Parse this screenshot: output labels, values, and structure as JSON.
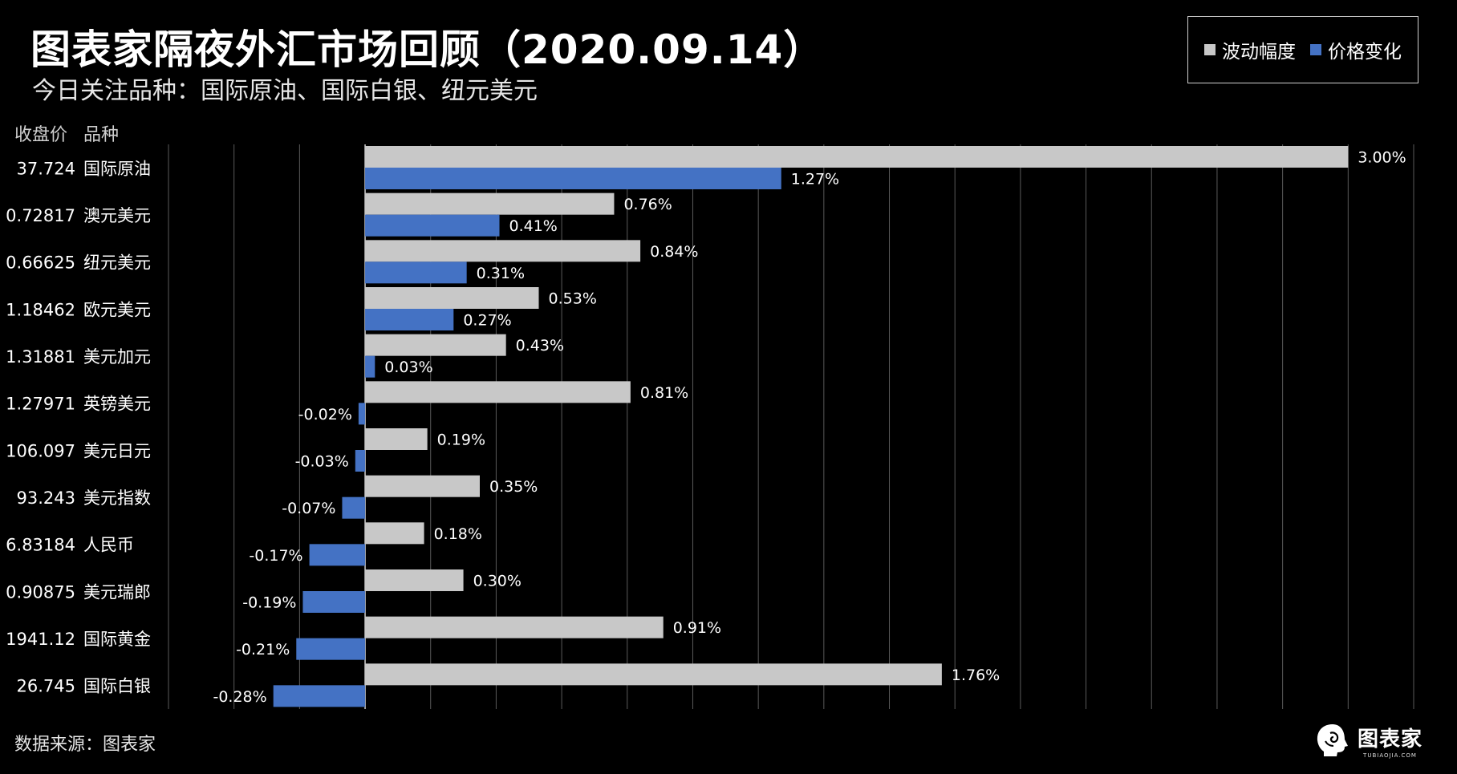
{
  "header": {
    "title": "图表家隔夜外汇市场回顾（2020.09.14）",
    "subtitle": "今日关注品种：国际原油、国际白银、纽元美元"
  },
  "legend": [
    {
      "label": "波动幅度",
      "color": "#c8c8c8"
    },
    {
      "label": "价格变化",
      "color": "#4472c4"
    }
  ],
  "columns": {
    "price": "收盘价",
    "name": "品种"
  },
  "source": "数据来源：图表家",
  "logo": {
    "cn": "图表家",
    "en": "TUBIAOJIA.COM"
  },
  "chart_data": {
    "type": "bar",
    "orientation": "horizontal",
    "categories": [
      "国际原油",
      "澳元美元",
      "纽元美元",
      "欧元美元",
      "美元加元",
      "英镑美元",
      "美元日元",
      "美元指数",
      "人民币",
      "美元瑞郎",
      "国际黄金",
      "国际白银"
    ],
    "closing_prices": [
      "37.724",
      "0.72817",
      "0.66625",
      "1.18462",
      "1.31881",
      "1.27971",
      "106.097",
      "93.243",
      "6.83184",
      "0.90875",
      "1941.12",
      "26.745"
    ],
    "series": [
      {
        "name": "波动幅度",
        "color": "#c8c8c8",
        "values": [
          3.0,
          0.76,
          0.84,
          0.53,
          0.43,
          0.81,
          0.19,
          0.35,
          0.18,
          0.3,
          0.91,
          1.76
        ],
        "labels": [
          "3.00%",
          "0.76%",
          "0.84%",
          "0.53%",
          "0.43%",
          "0.81%",
          "0.19%",
          "0.35%",
          "0.18%",
          "0.30%",
          "0.91%",
          "1.76%"
        ]
      },
      {
        "name": "价格变化",
        "color": "#4472c4",
        "values": [
          1.27,
          0.41,
          0.31,
          0.27,
          0.03,
          -0.02,
          -0.03,
          -0.07,
          -0.17,
          -0.19,
          -0.21,
          -0.28
        ],
        "labels": [
          "1.27%",
          "0.41%",
          "0.31%",
          "0.27%",
          "0.03%",
          "-0.02%",
          "-0.03%",
          "-0.07%",
          "-0.17%",
          "-0.19%",
          "-0.21%",
          "-0.28%"
        ]
      }
    ],
    "xlim": [
      -0.6,
      3.2
    ],
    "grid": true,
    "gridline_step": 0.2
  }
}
